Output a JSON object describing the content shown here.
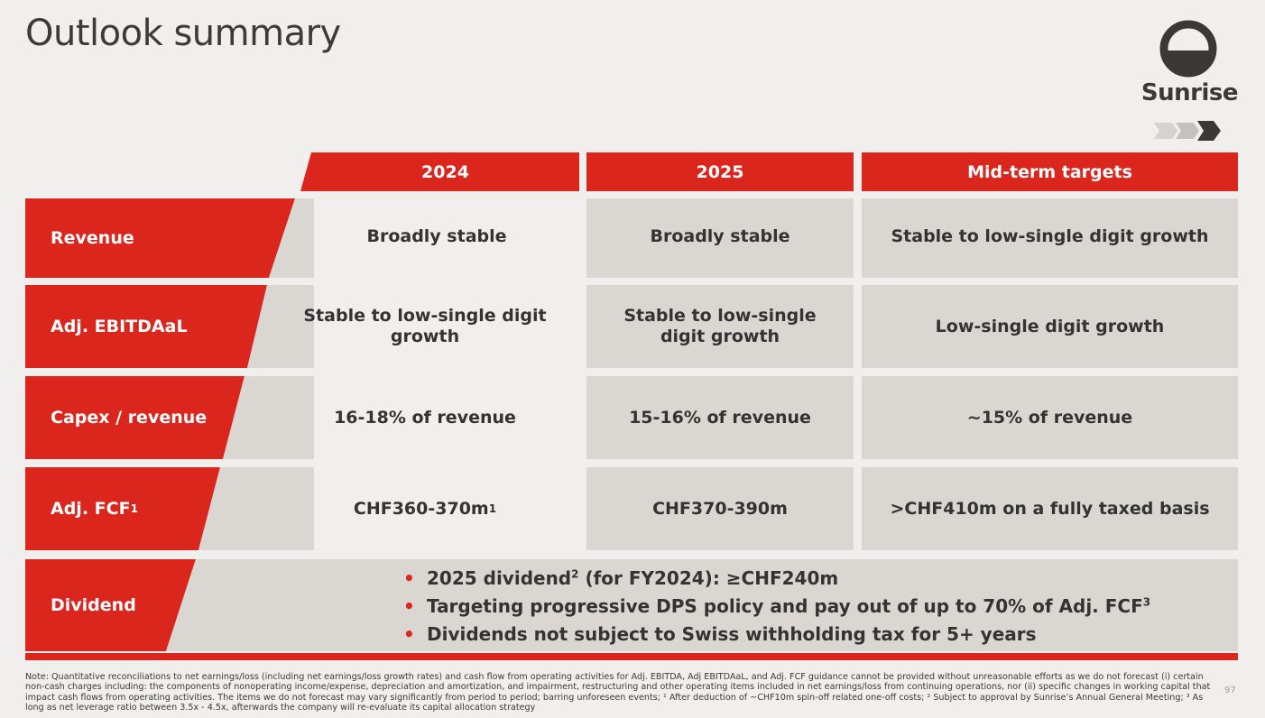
{
  "title": "Outlook summary",
  "logo": {
    "brand": "Sunrise"
  },
  "colors": {
    "accent": "#db261e",
    "cell": "#dad7d3",
    "background": "#f0efee"
  },
  "columns": [
    "2024",
    "2025",
    "Mid-term targets"
  ],
  "rows": [
    {
      "label": "Revenue",
      "values": [
        "Broadly stable",
        "Broadly stable",
        "Stable to low-single digit growth"
      ]
    },
    {
      "label": "Adj. EBITDAaL",
      "values": [
        "Stable to low-single digit growth",
        "Stable to low-single digit growth",
        "Low-single digit growth"
      ]
    },
    {
      "label": "Capex / revenue",
      "values": [
        "16-18% of revenue",
        "15-16% of revenue",
        "~15% of revenue"
      ]
    },
    {
      "label": "Adj. FCF",
      "label_sup": "1",
      "values": [
        "CHF360-370m",
        "CHF370-390m",
        ">CHF410m on a fully taxed basis"
      ],
      "value0_sup": "1"
    }
  ],
  "dividend": {
    "label": "Dividend",
    "bullets": [
      {
        "pre": "2025 dividend",
        "sup": "2",
        "post": " (for FY2024): ≥CHF240m"
      },
      {
        "pre": "Targeting progressive DPS policy and pay out of up to 70% of Adj. FCF",
        "sup": "3",
        "post": ""
      },
      {
        "pre": "Dividends not subject to Swiss withholding tax for 5+ years",
        "sup": "",
        "post": ""
      }
    ]
  },
  "footnote": "Note: Quantitative reconciliations to net earnings/loss (including net earnings/loss growth rates) and cash flow from operating activities for Adj. EBITDA, Adj EBITDAaL, and Adj. FCF guidance cannot be provided without unreasonable efforts as we do not forecast (i) certain non-cash charges including: the components of nonoperating income/expense, depreciation and amortization, and impairment, restructuring and other operating items included in net earnings/loss from continuing operations, nor (ii) specific changes in working capital that impact cash flows from operating activities. The items we do not forecast may vary significantly from period to period; barring unforeseen events; ¹ After deduction of ~CHF10m spin-off related one-off costs; ² Subject to approval by Sunrise’s Annual General Meeting; ³ As long as net leverage ratio between 3.5x - 4.5x, afterwards the company will re-evaluate its capital allocation strategy",
  "page_number": "97"
}
